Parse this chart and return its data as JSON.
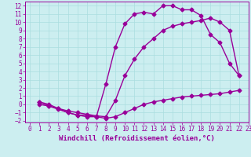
{
  "xlabel": "Windchill (Refroidissement éolien,°C)",
  "bg_color": "#cceef0",
  "grid_color": "#aadddf",
  "line_color": "#990099",
  "xlim": [
    -0.5,
    23
  ],
  "ylim": [
    -2.2,
    12.5
  ],
  "xticks": [
    0,
    1,
    2,
    3,
    4,
    5,
    6,
    7,
    8,
    9,
    10,
    11,
    12,
    13,
    14,
    15,
    16,
    17,
    18,
    19,
    20,
    21,
    22,
    23
  ],
  "yticks": [
    -2,
    -1,
    0,
    1,
    2,
    3,
    4,
    5,
    6,
    7,
    8,
    9,
    10,
    11,
    12
  ],
  "line1_x": [
    1,
    2,
    3,
    4,
    5,
    6,
    7,
    8,
    9,
    10,
    11,
    12,
    13,
    14,
    15,
    16,
    17,
    18,
    19,
    20,
    21,
    22
  ],
  "line1_y": [
    0.0,
    -0.2,
    -0.5,
    -1.0,
    -1.3,
    -1.5,
    -1.5,
    -1.7,
    -1.5,
    -1.0,
    -0.5,
    0.0,
    0.3,
    0.5,
    0.7,
    0.9,
    1.0,
    1.1,
    1.2,
    1.3,
    1.5,
    1.7
  ],
  "line2_x": [
    1,
    2,
    3,
    4,
    5,
    6,
    7,
    8,
    9,
    10,
    11,
    12,
    13,
    14,
    15,
    16,
    17,
    18,
    19,
    20,
    21,
    22
  ],
  "line2_y": [
    0.3,
    -0.2,
    -0.6,
    -1.0,
    -1.3,
    -1.3,
    -1.5,
    2.5,
    7.0,
    9.8,
    11.0,
    11.2,
    11.0,
    12.0,
    12.0,
    11.5,
    11.5,
    10.8,
    8.5,
    7.5,
    5.0,
    3.5
  ],
  "line3_x": [
    1,
    2,
    3,
    4,
    5,
    6,
    7,
    8,
    9,
    10,
    11,
    12,
    13,
    14,
    15,
    16,
    17,
    18,
    19,
    20,
    21,
    22
  ],
  "line3_y": [
    0.3,
    0.0,
    -0.5,
    -0.8,
    -1.0,
    -1.2,
    -1.4,
    -1.5,
    0.5,
    3.5,
    5.5,
    7.0,
    8.0,
    9.0,
    9.5,
    9.8,
    10.0,
    10.2,
    10.5,
    10.0,
    9.0,
    3.5
  ],
  "markersize": 2.5,
  "linewidth": 1.0,
  "tick_fontsize": 5.5,
  "label_fontsize": 6.5
}
